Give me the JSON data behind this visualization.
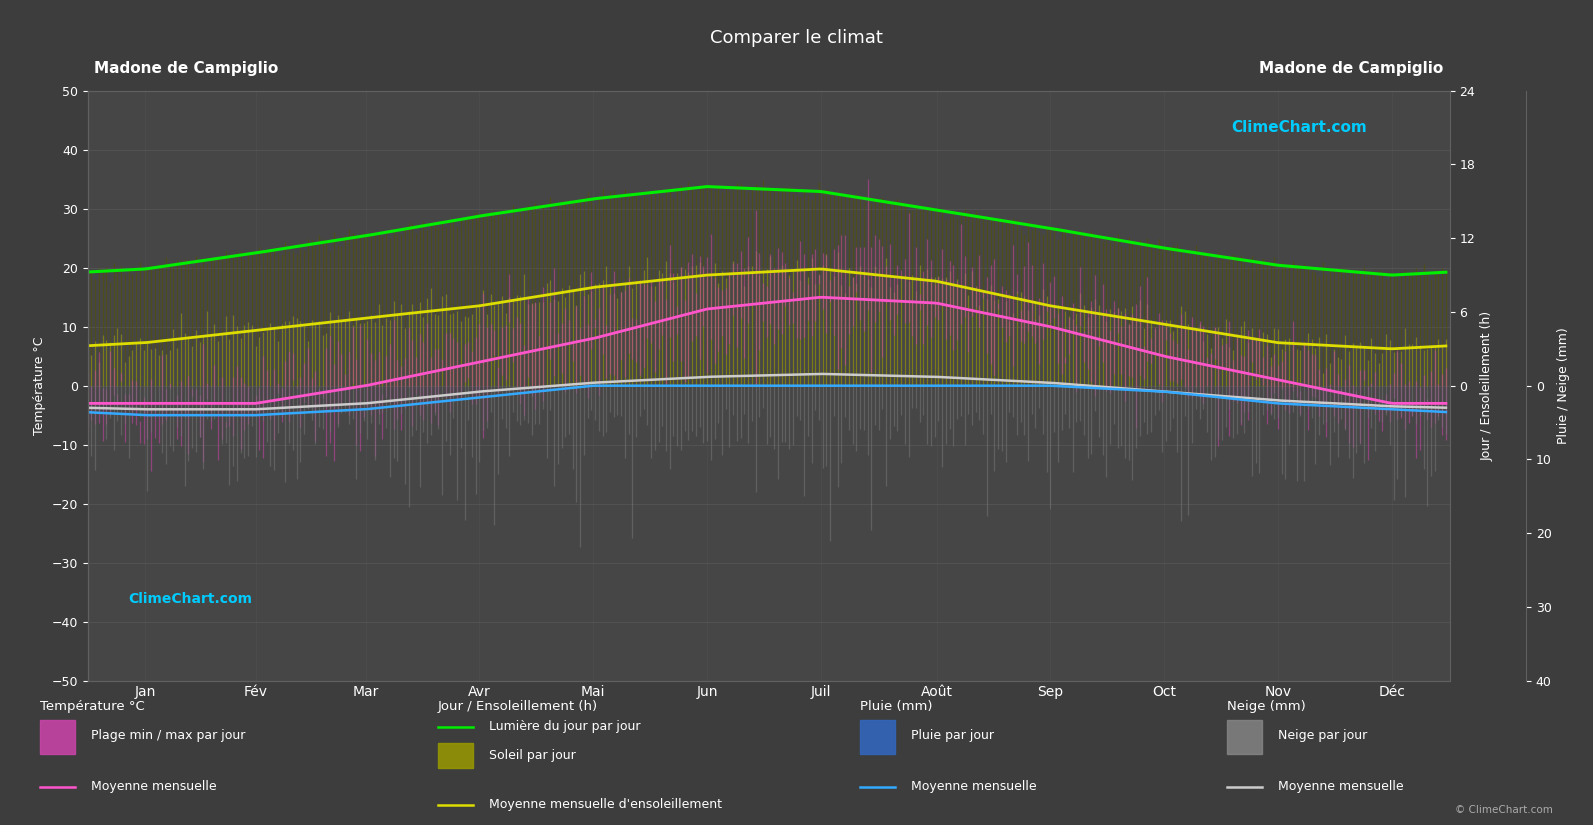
{
  "title": "Comparer le climat",
  "location": "Madone de Campiglio",
  "background_color": "#3d3d3d",
  "plot_bg_color": "#464646",
  "grid_color": "#575757",
  "months": [
    "Jan",
    "Fév",
    "Mar",
    "Avr",
    "Mai",
    "Jun",
    "Juil",
    "Août",
    "Sep",
    "Oct",
    "Nov",
    "Déc"
  ],
  "temp_ylim": [
    -50,
    50
  ],
  "daylight_monthly": [
    9.5,
    10.8,
    12.2,
    13.8,
    15.2,
    16.2,
    15.8,
    14.3,
    12.8,
    11.2,
    9.8,
    9.0
  ],
  "sunshine_monthly": [
    3.5,
    4.5,
    5.5,
    6.5,
    8.0,
    9.0,
    9.5,
    8.5,
    6.5,
    5.0,
    3.5,
    3.0
  ],
  "temp_max_monthly": [
    0,
    1,
    5,
    9,
    14,
    19,
    22,
    21,
    16,
    10,
    4,
    1
  ],
  "temp_min_monthly": [
    -7,
    -7,
    -5,
    -1,
    3,
    8,
    10,
    10,
    6,
    1,
    -3,
    -6
  ],
  "temp_mean_monthly": [
    -3,
    -3,
    0,
    4,
    8,
    13,
    15,
    14,
    10,
    5,
    1,
    -3
  ],
  "snow_mean_monthly": [
    -5,
    -5,
    -4,
    -2,
    0,
    0,
    0,
    0,
    0,
    -1,
    -3,
    -4
  ],
  "snow_min_monthly": [
    -13,
    -14,
    -13,
    -9,
    -4,
    0,
    0,
    0,
    -2,
    -6,
    -9,
    -12
  ],
  "precip_scale": 1.25,
  "sun_scale": 3.125,
  "daylight_color": "#00ee00",
  "sunshine_fill_color": "#999900",
  "daylight_fill_color": "#444400",
  "temp_bar_color": "#cc44aa",
  "precip_rain_color": "#3366bb",
  "precip_snow_color": "#777777",
  "mean_temp_color": "#ff55cc",
  "mean_snow_color": "#33aaff",
  "mean_white_color": "#cccccc",
  "sunshine_line_color": "#dddd00"
}
